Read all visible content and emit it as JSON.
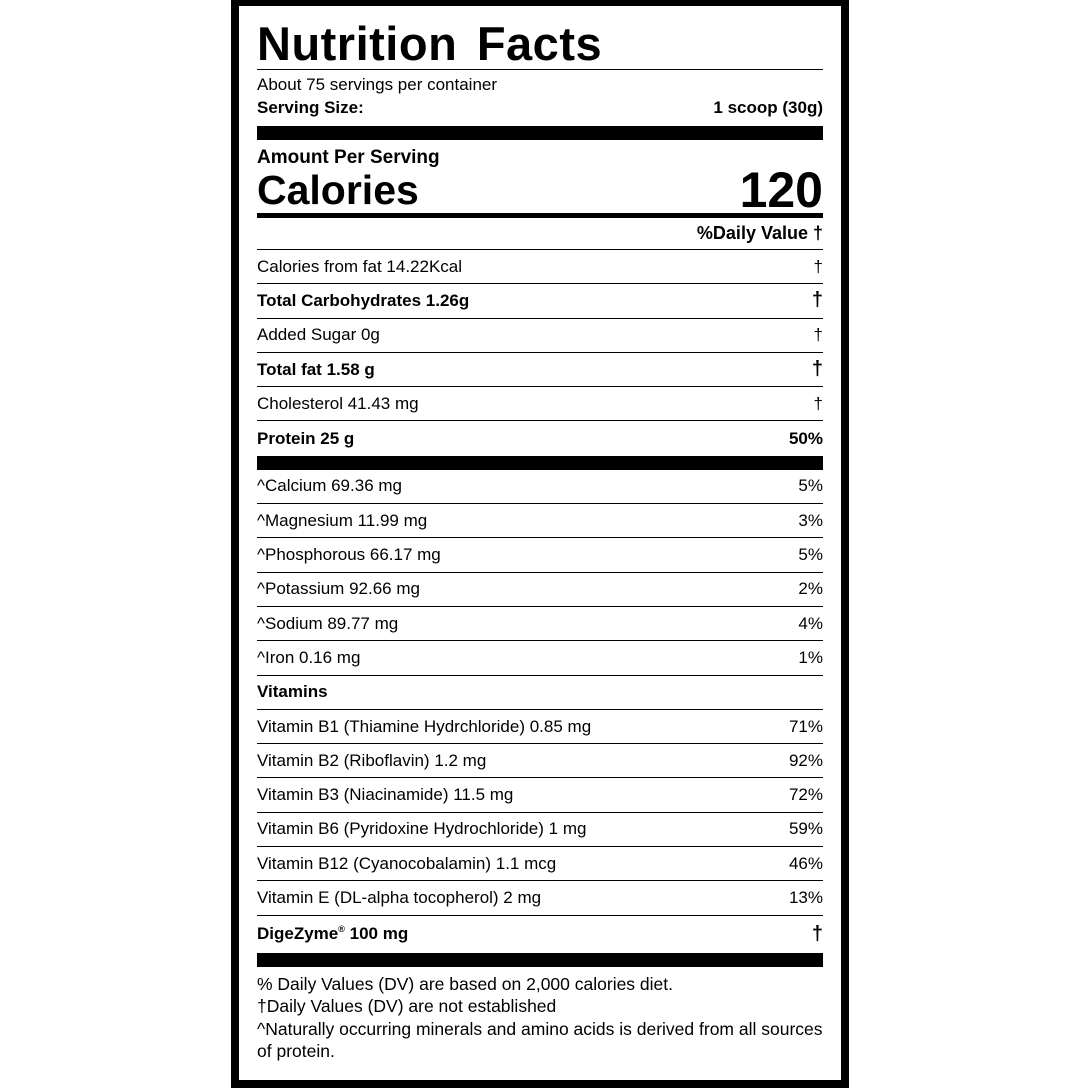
{
  "title": "Nutrition Facts",
  "servings_per_container": "About 75 servings per container",
  "serving_size": {
    "label": "Serving Size:",
    "value": "1 scoop (30g)"
  },
  "amount_per_serving": "Amount Per Serving",
  "calories": {
    "label": "Calories",
    "value": "120"
  },
  "daily_value_header": "%Daily Value †",
  "macros": [
    {
      "name": "Calories from fat 14.22Kcal",
      "dv": "†",
      "bold": false
    },
    {
      "name": "Total Carbohydrates 1.26g",
      "dv": "†",
      "bold": true
    },
    {
      "name": "Added Sugar 0g",
      "dv": "†",
      "bold": false
    },
    {
      "name": "Total fat 1.58 g",
      "dv": "†",
      "bold": true
    },
    {
      "name": "Cholesterol 41.43 mg",
      "dv": "†",
      "bold": false
    },
    {
      "name": "Protein 25 g",
      "dv": "50%",
      "bold": true
    }
  ],
  "minerals": [
    {
      "name": "^Calcium 69.36 mg",
      "dv": "5%"
    },
    {
      "name": "^Magnesium 11.99 mg",
      "dv": "3%"
    },
    {
      "name": "^Phosphorous 66.17 mg",
      "dv": "5%"
    },
    {
      "name": "^Potassium 92.66 mg",
      "dv": "2%"
    },
    {
      "name": "^Sodium 89.77 mg",
      "dv": "4%"
    },
    {
      "name": "^Iron 0.16 mg",
      "dv": "1%"
    }
  ],
  "vitamins_header": "Vitamins",
  "vitamins": [
    {
      "name": "Vitamin B1 (Thiamine Hydrchloride) 0.85 mg",
      "dv": "71%"
    },
    {
      "name": "Vitamin B2 (Riboflavin) 1.2 mg",
      "dv": "92%"
    },
    {
      "name": "Vitamin B3 (Niacinamide) 11.5 mg",
      "dv": "72%"
    },
    {
      "name": "Vitamin B6 (Pyridoxine Hydrochloride) 1 mg",
      "dv": "59%"
    },
    {
      "name": "Vitamin B12 (Cyanocobalamin) 1.1 mcg",
      "dv": "46%"
    },
    {
      "name": "Vitamin E (DL-alpha tocopherol) 2 mg",
      "dv": "13%"
    }
  ],
  "digezyme": {
    "name": "DigeZyme",
    "reg": "®",
    "amount": "100 mg",
    "dv": "†"
  },
  "footnotes": [
    "% Daily Values (DV) are based on 2,000 calories diet.",
    "†Daily Values (DV) are not established",
    "^Naturally occurring minerals and amino acids is derived from all sources of protein."
  ]
}
